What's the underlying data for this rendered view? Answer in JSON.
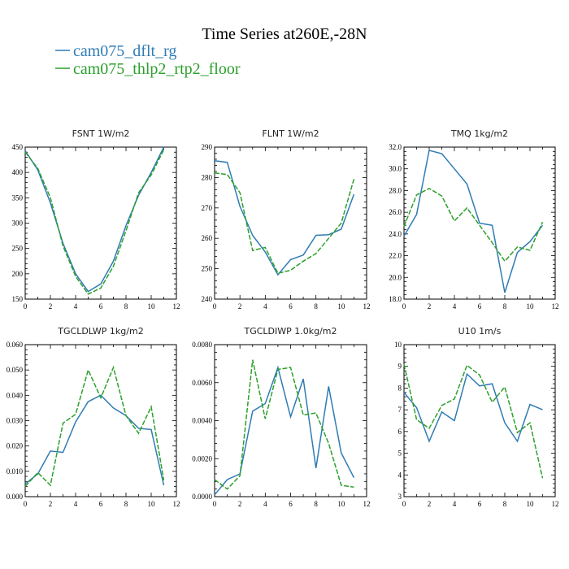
{
  "figure": {
    "title": "Time Series at260E,-28N",
    "colors": {
      "dflt": "#2f7cb4",
      "floor": "#2ca02c"
    }
  },
  "chart_data": [
    {
      "type": "line",
      "title": "FSNT   1W/m2",
      "x": [
        0,
        1,
        2,
        3,
        4,
        5,
        6,
        7,
        8,
        9,
        10,
        11
      ],
      "xlim": [
        0,
        12
      ],
      "xticks": [
        0,
        2,
        4,
        6,
        8,
        10,
        12
      ],
      "ylim": [
        150,
        450
      ],
      "yticks": [
        150,
        200,
        250,
        300,
        350,
        400,
        450
      ],
      "yticklabels": [
        "150",
        "200",
        "250",
        "300",
        "350",
        "400",
        "450"
      ],
      "series": [
        {
          "name": "cam075_dflt_rg",
          "color": "#2f7cb4",
          "style": "solid",
          "values": [
            443,
            405,
            340,
            260,
            200,
            165,
            180,
            225,
            295,
            355,
            400,
            450
          ]
        },
        {
          "name": "cam075_thlp2_rtp2_floor",
          "color": "#2ca02c",
          "style": "dashed",
          "values": [
            440,
            408,
            350,
            255,
            195,
            160,
            172,
            215,
            285,
            360,
            395,
            445
          ]
        }
      ]
    },
    {
      "type": "line",
      "title": "FLNT   1W/m2",
      "x": [
        0,
        1,
        2,
        3,
        4,
        5,
        6,
        7,
        8,
        9,
        10,
        11
      ],
      "xlim": [
        0,
        12
      ],
      "xticks": [
        0,
        2,
        4,
        6,
        8,
        10,
        12
      ],
      "ylim": [
        240,
        290
      ],
      "yticks": [
        240,
        250,
        260,
        270,
        280,
        290
      ],
      "yticklabels": [
        "240",
        "250",
        "260",
        "270",
        "280",
        "290"
      ],
      "series": [
        {
          "name": "cam075_dflt_rg",
          "color": "#2f7cb4",
          "style": "solid",
          "values": [
            285.5,
            285.0,
            270.5,
            261.0,
            255.5,
            248.0,
            253.0,
            254.5,
            261.0,
            261.2,
            263.0,
            274.5
          ]
        },
        {
          "name": "cam075_thlp2_rtp2_floor",
          "color": "#2ca02c",
          "style": "dashed",
          "values": [
            281.5,
            281.0,
            275.0,
            256.0,
            257.0,
            248.5,
            249.5,
            252.5,
            255.0,
            260.0,
            265.0,
            279.5
          ]
        }
      ]
    },
    {
      "type": "line",
      "title": "TMQ   1kg/m2",
      "x": [
        0,
        1,
        2,
        3,
        4,
        5,
        6,
        7,
        8,
        9,
        10,
        11
      ],
      "xlim": [
        0,
        12
      ],
      "xticks": [
        0,
        2,
        4,
        6,
        8,
        10,
        12
      ],
      "ylim": [
        18,
        32
      ],
      "yticks": [
        18,
        20,
        22,
        24,
        26,
        28,
        30,
        32
      ],
      "yticklabels": [
        "18.0",
        "20.0",
        "22.0",
        "24.0",
        "26.0",
        "28.0",
        "30.0",
        "32.0"
      ],
      "series": [
        {
          "name": "cam075_dflt_rg",
          "color": "#2f7cb4",
          "style": "solid",
          "values": [
            23.8,
            25.8,
            31.7,
            31.4,
            30.0,
            28.6,
            25.0,
            24.8,
            18.6,
            22.3,
            23.3,
            24.8
          ]
        },
        {
          "name": "cam075_thlp2_rtp2_floor",
          "color": "#2ca02c",
          "style": "dashed",
          "values": [
            24.7,
            27.6,
            28.2,
            27.5,
            25.2,
            26.4,
            24.8,
            23.2,
            21.5,
            22.8,
            22.5,
            25.1
          ]
        }
      ]
    },
    {
      "type": "line",
      "title": "TGCLDLWP   1kg/m2",
      "x": [
        0,
        1,
        2,
        3,
        4,
        5,
        6,
        7,
        8,
        9,
        10,
        11
      ],
      "xlim": [
        0,
        12
      ],
      "xticks": [
        0,
        2,
        4,
        6,
        8,
        10,
        12
      ],
      "ylim": [
        0,
        0.06
      ],
      "yticks": [
        0,
        0.01,
        0.02,
        0.03,
        0.04,
        0.05,
        0.06
      ],
      "yticklabels": [
        "0.000",
        "0.010",
        "0.020",
        "0.030",
        "0.040",
        "0.050",
        "0.060"
      ],
      "series": [
        {
          "name": "cam075_dflt_rg",
          "color": "#2f7cb4",
          "style": "solid",
          "values": [
            0.005,
            0.009,
            0.018,
            0.0175,
            0.0295,
            0.0375,
            0.04,
            0.035,
            0.032,
            0.027,
            0.0265,
            0.0045
          ]
        },
        {
          "name": "cam075_thlp2_rtp2_floor",
          "color": "#2ca02c",
          "style": "dashed",
          "values": [
            0.004,
            0.0095,
            0.0045,
            0.029,
            0.0325,
            0.05,
            0.039,
            0.051,
            0.032,
            0.025,
            0.0355,
            0.0065
          ]
        }
      ]
    },
    {
      "type": "line",
      "title": "TGCLDIWP   1.0kg/m2",
      "x": [
        0,
        1,
        2,
        3,
        4,
        5,
        6,
        7,
        8,
        9,
        10,
        11
      ],
      "xlim": [
        0,
        12
      ],
      "xticks": [
        0,
        2,
        4,
        6,
        8,
        10,
        12
      ],
      "ylim": [
        0,
        0.008
      ],
      "yticks": [
        0,
        0.002,
        0.004,
        0.006,
        0.008
      ],
      "yticklabels": [
        "0.0000",
        "0.0020",
        "0.0040",
        "0.0060",
        "0.0080"
      ],
      "series": [
        {
          "name": "cam075_dflt_rg",
          "color": "#2f7cb4",
          "style": "solid",
          "values": [
            0.0001,
            0.0009,
            0.0012,
            0.0045,
            0.0049,
            0.0068,
            0.0042,
            0.0062,
            0.0015,
            0.0058,
            0.0023,
            0.001
          ]
        },
        {
          "name": "cam075_thlp2_rtp2_floor",
          "color": "#2ca02c",
          "style": "dashed",
          "values": [
            0.0009,
            0.0004,
            0.0011,
            0.0072,
            0.0041,
            0.0067,
            0.0068,
            0.0043,
            0.0044,
            0.0028,
            0.0006,
            0.0005
          ]
        }
      ]
    },
    {
      "type": "line",
      "title": "U10   1m/s",
      "x": [
        0,
        1,
        2,
        3,
        4,
        5,
        6,
        7,
        8,
        9,
        10,
        11
      ],
      "xlim": [
        0,
        12
      ],
      "xticks": [
        0,
        2,
        4,
        6,
        8,
        10,
        12
      ],
      "ylim": [
        3,
        10
      ],
      "yticks": [
        3,
        4,
        5,
        6,
        7,
        8,
        9,
        10
      ],
      "yticklabels": [
        "3",
        "4",
        "5",
        "6",
        "7",
        "8",
        "9",
        "10"
      ],
      "series": [
        {
          "name": "cam075_dflt_rg",
          "color": "#2f7cb4",
          "style": "solid",
          "values": [
            7.8,
            7.1,
            5.55,
            6.9,
            6.5,
            8.65,
            8.1,
            8.2,
            6.4,
            5.55,
            7.25,
            7.0
          ]
        },
        {
          "name": "cam075_thlp2_rtp2_floor",
          "color": "#2ca02c",
          "style": "dashed",
          "values": [
            9.1,
            6.55,
            6.15,
            7.2,
            7.5,
            9.05,
            8.6,
            7.35,
            8.05,
            5.95,
            6.4,
            3.85
          ]
        }
      ]
    }
  ]
}
